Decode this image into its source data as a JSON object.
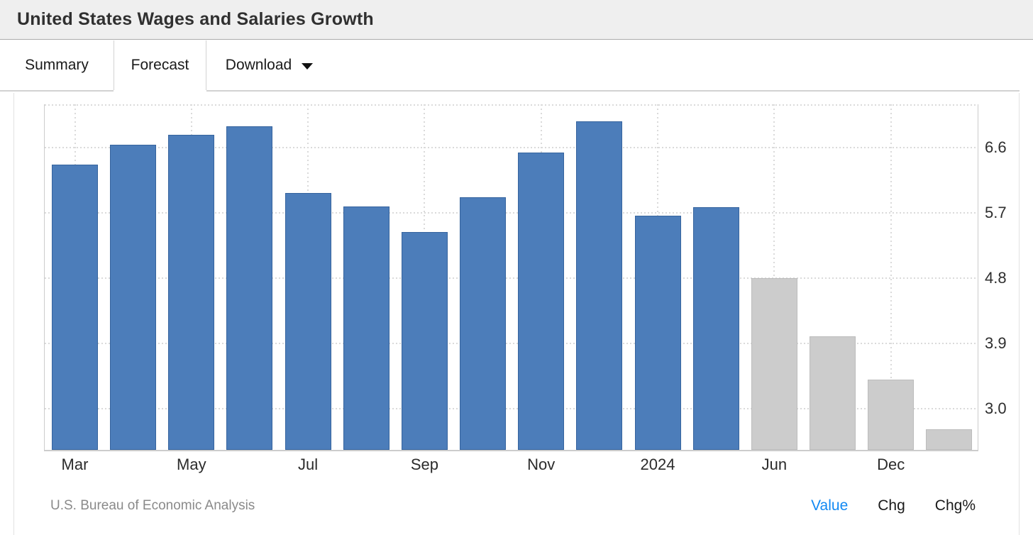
{
  "header": {
    "title": "United States Wages and Salaries Growth"
  },
  "tabs": [
    {
      "label": "Summary",
      "active": false
    },
    {
      "label": "Forecast",
      "active": true
    },
    {
      "label": "Download",
      "active": false,
      "icon": "chevron-down"
    }
  ],
  "chart_data": {
    "type": "bar",
    "title": "United States Wages and Salaries Growth",
    "unit": "percent",
    "x_tick_labels": [
      "Mar",
      "May",
      "Jul",
      "Sep",
      "Nov",
      "2024",
      "Jun",
      "Dec"
    ],
    "x_tick_bar_indices": [
      0,
      2,
      4,
      6,
      8,
      10,
      12,
      14
    ],
    "series": [
      {
        "name": "actual",
        "color": "#4c7dba",
        "border_color": "#36649e",
        "values": [
          6.35,
          6.62,
          6.76,
          6.88,
          5.96,
          5.77,
          5.42,
          5.9,
          6.51,
          6.95,
          5.64,
          5.76
        ]
      },
      {
        "name": "forecast",
        "color": "#cccccc",
        "border_color": "#bcbcbc",
        "values": [
          4.78,
          3.98,
          3.38,
          2.69
        ]
      }
    ],
    "y_ticks": [
      6.6,
      5.7,
      4.8,
      3.9,
      3.0
    ],
    "ylim": [
      2.41,
      7.2
    ],
    "grid": "dotted",
    "y_axis_side": "right",
    "legend": "none"
  },
  "footer": {
    "source": "U.S. Bureau of Economic Analysis",
    "links": [
      {
        "label": "Value",
        "active": true
      },
      {
        "label": "Chg",
        "active": false
      },
      {
        "label": "Chg%",
        "active": false
      }
    ]
  },
  "colors": {
    "actual_bar": "#4c7dba",
    "forecast_bar": "#cccccc",
    "active_link": "#1289f3",
    "header_bg": "#efefef"
  }
}
